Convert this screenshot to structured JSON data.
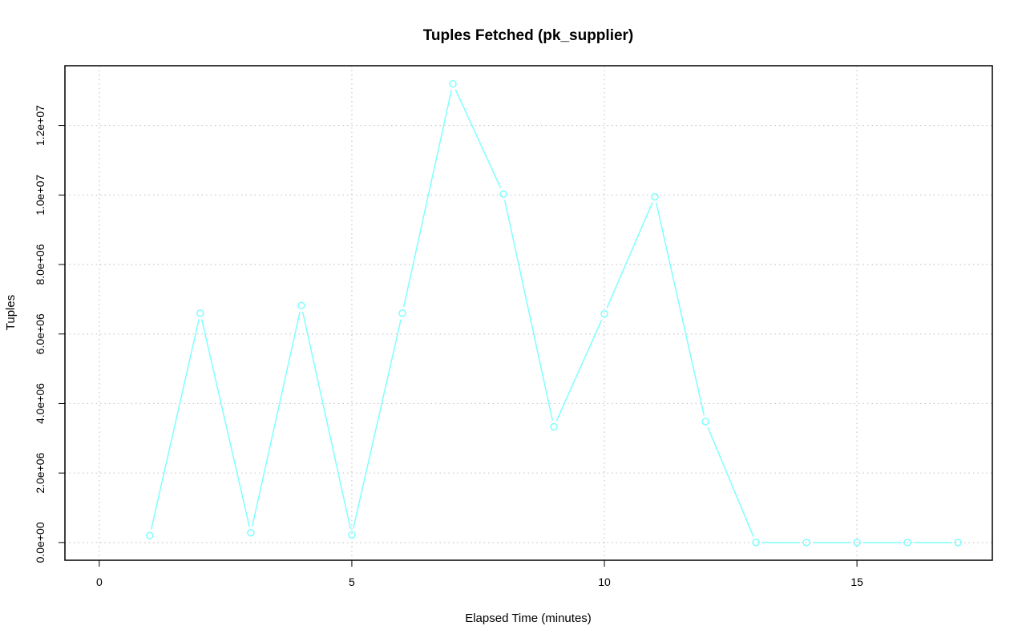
{
  "chart_data": {
    "type": "line",
    "title": "Tuples Fetched (pk_supplier)",
    "xlabel": "Elapsed Time (minutes)",
    "ylabel": "Tuples",
    "xlim": [
      -0.68,
      17.68
    ],
    "ylim": [
      -510000,
      13720000
    ],
    "x_ticks": [
      0,
      5,
      10,
      15
    ],
    "x_tick_labels": [
      "0",
      "5",
      "10",
      "15"
    ],
    "y_ticks": [
      0,
      2000000,
      4000000,
      6000000,
      8000000,
      10000000,
      12000000
    ],
    "y_tick_labels": [
      "0.0e+00",
      "2.0e+06",
      "4.0e+06",
      "6.0e+06",
      "8.0e+06",
      "1.0e+07",
      "1.2e+07"
    ],
    "grid": true,
    "series": [
      {
        "color": "#7fffff",
        "marker": "open-circle",
        "x": [
          1,
          2,
          3,
          4,
          5,
          6,
          7,
          8,
          9,
          10,
          11,
          12,
          13,
          14,
          15,
          16,
          17
        ],
        "y": [
          200000,
          6600000,
          280000,
          6820000,
          220000,
          6600000,
          13200000,
          10030000,
          3330000,
          6580000,
          9950000,
          3480000,
          0,
          0,
          0,
          0,
          0
        ]
      }
    ]
  }
}
